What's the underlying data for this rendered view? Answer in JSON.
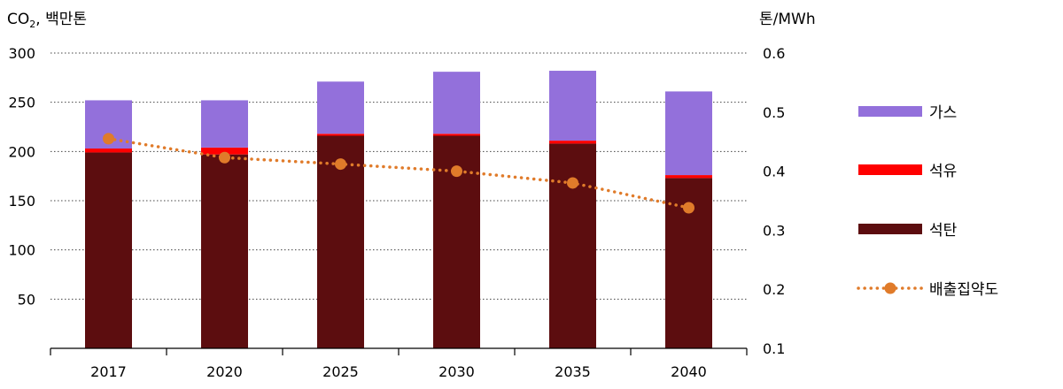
{
  "chart_data": {
    "type": "bar",
    "stacked": true,
    "title": "",
    "ylabel_prefix": "CO",
    "ylabel_sub": "2",
    "ylabel_suffix": ", 백만톤",
    "y2label": "톤/MWh",
    "categories": [
      "2017",
      "2020",
      "2025",
      "2030",
      "2035",
      "2040"
    ],
    "ylim": [
      0,
      300
    ],
    "yticks": [
      50,
      100,
      150,
      200,
      250,
      300
    ],
    "y2lim": [
      0.1,
      0.6
    ],
    "y2ticks": [
      "0.1",
      "0.2",
      "0.3",
      "0.4",
      "0.5",
      "0.6"
    ],
    "grid": true,
    "legend_position": "right",
    "series": [
      {
        "name": "석탄",
        "color": "#5c0d0f",
        "values": [
          199,
          197,
          216,
          216,
          208,
          173
        ]
      },
      {
        "name": "석유",
        "color": "#ff0000",
        "values": [
          4,
          7,
          2,
          2,
          3,
          3
        ]
      },
      {
        "name": "가스",
        "color": "#9370db",
        "values": [
          49,
          48,
          53,
          63,
          71,
          85
        ]
      }
    ],
    "line_series": {
      "name": "배출집약도",
      "color": "#e07b2a",
      "axis": "right",
      "values": [
        0.455,
        0.423,
        0.412,
        0.4,
        0.38,
        0.338
      ]
    }
  }
}
